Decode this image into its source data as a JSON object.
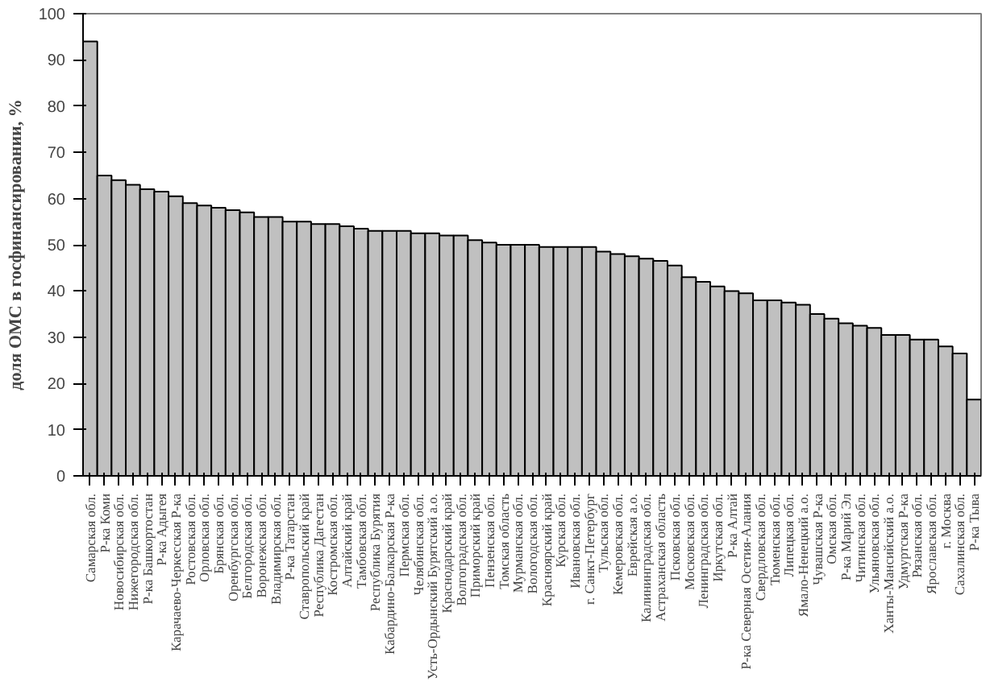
{
  "chart_data": {
    "type": "bar",
    "ylabel": "доля ОМС в госфинансировании, %",
    "categories": [
      "Самарская обл.",
      "Р-ка Коми",
      "Новосибирская обл.",
      "Нижегородская обл.",
      "Р-ка Башкортостан",
      "Р-ка Адыгея",
      "Карачаево-Черкесская Р-ка",
      "Ростовская обл.",
      "Орловская обл.",
      "Брянская обл.",
      "Оренбургская обл.",
      "Белгородская обл.",
      "Воронежская обл.",
      "Владимирская обл.",
      "Р-ка Татарстан",
      "Ставропольский край",
      "Республика Дагестан",
      "Костромская обл.",
      "Алтайский край",
      "Тамбовская обл.",
      "Республика Бурятия",
      "Кабардино-Балкарская Р-ка",
      "Пермская обл.",
      "Челябинская обл.",
      "Усть-Ордынский Бурятский а.о.",
      "Краснодарский край",
      "Волгоградская обл.",
      "Приморский край",
      "Пензенская обл.",
      "Томская область",
      "Мурманская обл.",
      "Вологодская обл.",
      "Красноярский край",
      "Курская обл.",
      "Ивановская обл.",
      "г. Санкт-Петербург",
      "Тульская обл.",
      "Кемеровская обл.",
      "Еврейская а.о.",
      "Калининградская обл.",
      "Астраханская область",
      "Псковская обл.",
      "Московская обл.",
      "Ленинградская обл.",
      "Иркутская обл.",
      "Р-ка Алтай",
      "Р-ка Северная Осетия-Алания",
      "Свердловская обл.",
      "Тюменская обл.",
      "Липецкая обл.",
      "Ямало-Ненецкий а.о.",
      "Чувашская Р-ка",
      "Омская обл.",
      "Р-ка Марий Эл",
      "Читинская обл.",
      "Ульяновская обл.",
      "Ханты-Мансийский а.о.",
      "Удмуртская Р-ка",
      "Рязанская обл.",
      "Ярославская обл.",
      "г. Москва",
      "Сахалинская обл.",
      "Р-ка Тыва"
    ],
    "values": [
      94,
      65,
      64,
      63,
      62,
      61.5,
      60.5,
      59,
      58.5,
      58,
      57.5,
      57,
      56,
      56,
      55,
      55,
      54.5,
      54.5,
      54,
      53.5,
      53,
      53,
      53,
      52.5,
      52.5,
      52,
      52,
      51,
      50.5,
      50,
      50,
      50,
      49.5,
      49.5,
      49.5,
      49.5,
      48.5,
      48,
      47.5,
      47,
      46.5,
      45.5,
      43,
      42,
      41,
      40,
      39.5,
      38,
      38,
      37.5,
      37,
      35,
      34,
      33,
      32.5,
      32,
      30.5,
      30.5,
      29.5,
      29.5,
      28,
      26.5,
      16.5
    ],
    "color": "#c0c0c0",
    "ylim": [
      0,
      100
    ],
    "yticks": [
      0,
      10,
      20,
      30,
      40,
      50,
      60,
      70,
      80,
      90,
      100
    ],
    "grid": false
  }
}
